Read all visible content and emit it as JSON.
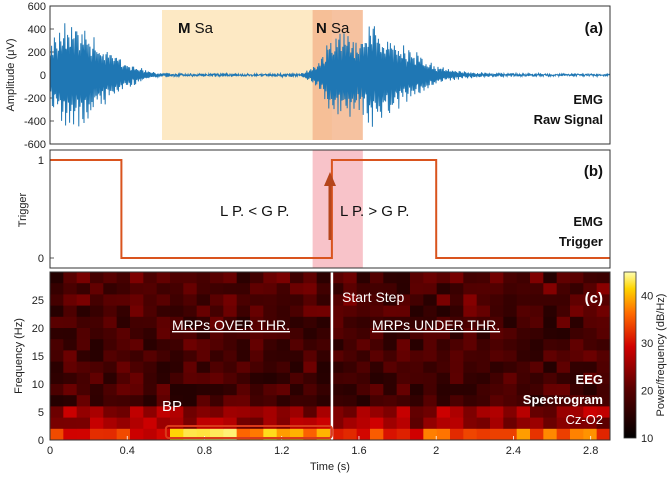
{
  "chart_data": [
    {
      "panel": "(a)",
      "type": "line",
      "ylabel": "Amplitude (μV)",
      "ylim": [
        -600,
        600
      ],
      "xlim": [
        0,
        2.9
      ],
      "yticks": [
        "600",
        "400",
        "200",
        "0",
        "-200",
        "-400",
        "-600"
      ],
      "series": [
        {
          "color": "#1f77b4",
          "x": [
            0.0,
            0.05,
            0.1,
            0.15,
            0.2,
            0.25,
            0.3,
            0.35,
            0.4,
            0.45,
            0.5,
            0.55,
            0.6,
            0.7,
            0.8,
            0.9,
            1.0,
            1.1,
            1.2,
            1.3,
            1.35,
            1.4,
            1.45,
            1.5,
            1.55,
            1.6,
            1.65,
            1.7,
            1.75,
            1.8,
            1.85,
            1.9,
            1.95,
            2.0,
            2.1,
            2.2,
            2.3,
            2.4,
            2.5,
            2.6,
            2.7,
            2.8,
            2.9
          ],
          "y": [
            300,
            -450,
            560,
            -520,
            400,
            -300,
            250,
            -200,
            120,
            -80,
            40,
            -20,
            10,
            5,
            -5,
            8,
            -6,
            5,
            -8,
            10,
            -60,
            150,
            -320,
            400,
            -380,
            300,
            480,
            -460,
            380,
            -330,
            250,
            -200,
            140,
            -80,
            40,
            -20,
            15,
            -10,
            8,
            -6,
            5,
            -4,
            3
          ]
        }
      ],
      "shaded_regions": [
        {
          "label": "M Sa",
          "label_bold": "M",
          "label_rest": " Sa",
          "x": [
            0.58,
            1.46
          ],
          "color": "#fde9c4"
        },
        {
          "label": "N Sa",
          "label_bold": "N",
          "label_rest": " Sa",
          "x": [
            1.36,
            1.62
          ],
          "color": "#f5b78f"
        }
      ],
      "panel_label": "(a)",
      "annotation": [
        "EMG",
        "Raw Signal"
      ]
    },
    {
      "panel": "(b)",
      "type": "line",
      "ylabel": "Trigger",
      "ylim": [
        0,
        1
      ],
      "xlim": [
        0,
        2.9
      ],
      "yticks": [
        "1",
        "0"
      ],
      "series": [
        {
          "color": "#d9541e",
          "x": [
            0.0,
            0.37,
            0.37,
            1.46,
            1.46,
            2.0,
            2.0,
            2.9
          ],
          "y": [
            1,
            1,
            0,
            0,
            1,
            1,
            0,
            0
          ]
        }
      ],
      "shaded_regions": [
        {
          "x": [
            1.36,
            1.62
          ],
          "color": "#f8c3c9"
        }
      ],
      "annotations": [
        "L P. < G P.",
        "L P. > G P."
      ],
      "panel_label": "(b)",
      "annotation": [
        "EMG",
        "Trigger"
      ]
    },
    {
      "panel": "(c)",
      "type": "heatmap",
      "xlabel": "Time (s)",
      "ylabel": "Frequency (Hz)",
      "xlim": [
        0,
        2.9
      ],
      "ylim": [
        0,
        30
      ],
      "xticks": [
        "0",
        "0.4",
        "0.8",
        "1.2",
        "1.6",
        "2",
        "2.4",
        "2.8"
      ],
      "xtick_values": [
        0,
        0.4,
        0.8,
        1.2,
        1.6,
        2.0,
        2.4,
        2.8
      ],
      "yticks": [
        "25",
        "20",
        "15",
        "10",
        "5",
        "0"
      ],
      "ytick_values": [
        25,
        20,
        15,
        10,
        5,
        0
      ],
      "colorbar": {
        "label": "Power/frequency (dB/Hz)",
        "ticks": [
          "40",
          "30",
          "20",
          "10"
        ],
        "min": 10,
        "max": 45
      },
      "divider_x": 1.46,
      "annotations": {
        "start_step": "Start Step",
        "left_title": "MRPs OVER THR.",
        "right_title": "MRPs UNDER THR.",
        "bp": "BP",
        "bp_box_x": [
          0.6,
          1.46
        ],
        "bp_box_y": [
          0,
          2.5
        ],
        "label_lines": [
          "EEG",
          "Spectrogram",
          "Cz-O2"
        ]
      },
      "panel_label": "(c)"
    }
  ]
}
